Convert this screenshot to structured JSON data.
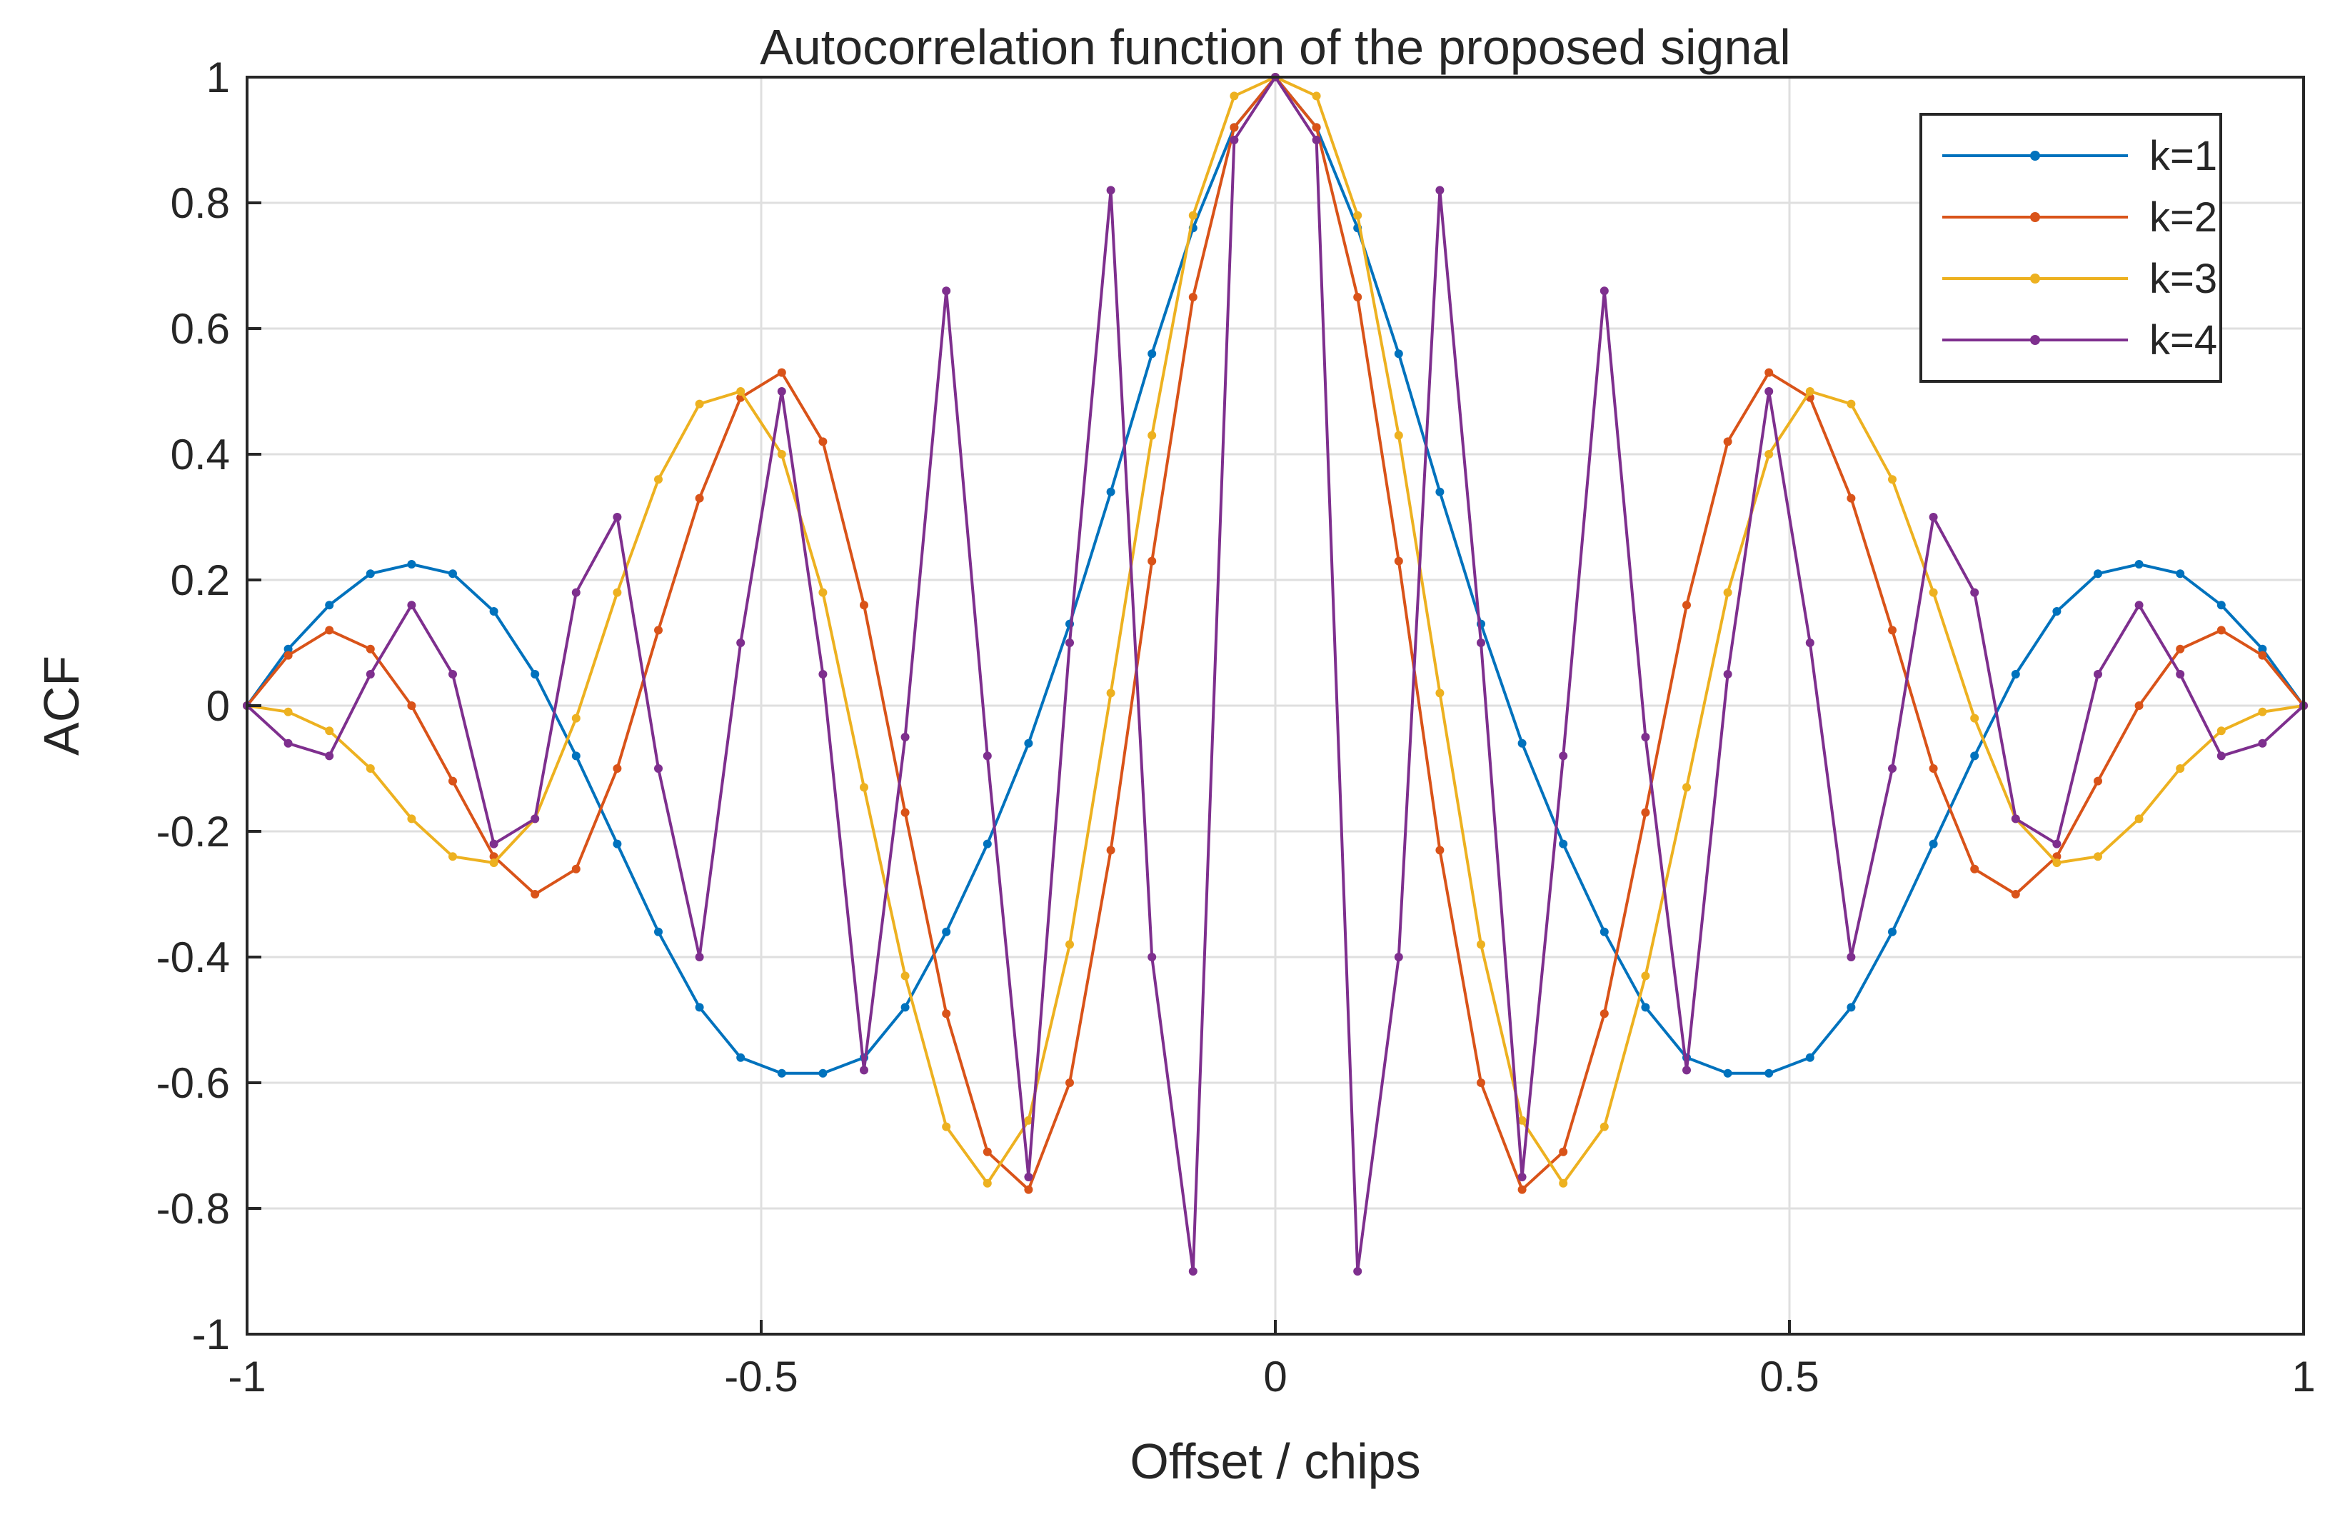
{
  "chart_data": {
    "type": "line",
    "title": "Autocorrelation function of the proposed signal",
    "xlabel": "Offset / chips",
    "ylabel": "ACF",
    "xlim": [
      -1,
      1
    ],
    "ylim": [
      -1,
      1
    ],
    "xticks": [
      -1,
      -0.5,
      0,
      0.5,
      1
    ],
    "xtick_labels": [
      "-1",
      "-0.5",
      "0",
      "0.5",
      "1"
    ],
    "yticks": [
      -1,
      -0.8,
      -0.6,
      -0.4,
      -0.2,
      0,
      0.2,
      0.4,
      0.6,
      0.8,
      1
    ],
    "ytick_labels": [
      "-1",
      "-0.8",
      "-0.6",
      "-0.4",
      "-0.2",
      "0",
      "0.2",
      "0.4",
      "0.6",
      "0.8",
      "1"
    ],
    "grid": true,
    "legend_position": "top-right",
    "markers": "dot",
    "x": [
      -1,
      -0.96,
      -0.92,
      -0.88,
      -0.84,
      -0.8,
      -0.76,
      -0.72,
      -0.68,
      -0.64,
      -0.6,
      -0.56,
      -0.52,
      -0.48,
      -0.44,
      -0.4,
      -0.36,
      -0.32,
      -0.28,
      -0.24,
      -0.2,
      -0.16,
      -0.12,
      -0.08,
      -0.04,
      0,
      0.04,
      0.08,
      0.12,
      0.16,
      0.2,
      0.24,
      0.28,
      0.32,
      0.36,
      0.4,
      0.44,
      0.48,
      0.52,
      0.56,
      0.6,
      0.64,
      0.68,
      0.72,
      0.76,
      0.8,
      0.84,
      0.88,
      0.92,
      0.96,
      1
    ],
    "series": [
      {
        "name": "k=1",
        "color": "#0072BD",
        "values": [
          0,
          0.09,
          0.16,
          0.21,
          0.225,
          0.21,
          0.15,
          0.05,
          -0.08,
          -0.22,
          -0.36,
          -0.48,
          -0.56,
          -0.585,
          -0.585,
          -0.56,
          -0.48,
          -0.36,
          -0.22,
          -0.06,
          0.13,
          0.34,
          0.56,
          0.76,
          0.92,
          1,
          0.92,
          0.76,
          0.56,
          0.34,
          0.13,
          -0.06,
          -0.22,
          -0.36,
          -0.48,
          -0.56,
          -0.585,
          -0.585,
          -0.56,
          -0.48,
          -0.36,
          -0.22,
          -0.08,
          0.05,
          0.15,
          0.21,
          0.225,
          0.21,
          0.16,
          0.09,
          0
        ]
      },
      {
        "name": "k=2",
        "color": "#D95319",
        "values": [
          0,
          0.08,
          0.12,
          0.09,
          0,
          -0.12,
          -0.24,
          -0.3,
          -0.26,
          -0.1,
          0.12,
          0.33,
          0.49,
          0.53,
          0.42,
          0.16,
          -0.17,
          -0.49,
          -0.71,
          -0.77,
          -0.6,
          -0.23,
          0.23,
          0.65,
          0.92,
          1,
          0.92,
          0.65,
          0.23,
          -0.23,
          -0.6,
          -0.77,
          -0.71,
          -0.49,
          -0.17,
          0.16,
          0.42,
          0.53,
          0.49,
          0.33,
          0.12,
          -0.1,
          -0.26,
          -0.3,
          -0.24,
          -0.12,
          0,
          0.09,
          0.12,
          0.08,
          0
        ]
      },
      {
        "name": "k=3",
        "color": "#EDB120",
        "values": [
          0,
          -0.01,
          -0.04,
          -0.1,
          -0.18,
          -0.24,
          -0.25,
          -0.18,
          -0.02,
          0.18,
          0.36,
          0.48,
          0.5,
          0.4,
          0.18,
          -0.13,
          -0.43,
          -0.67,
          -0.76,
          -0.66,
          -0.38,
          0.02,
          0.43,
          0.78,
          0.97,
          1,
          0.97,
          0.78,
          0.43,
          0.02,
          -0.38,
          -0.66,
          -0.76,
          -0.67,
          -0.43,
          -0.13,
          0.18,
          0.4,
          0.5,
          0.48,
          0.36,
          0.18,
          -0.02,
          -0.18,
          -0.25,
          -0.24,
          -0.18,
          -0.1,
          -0.04,
          -0.01,
          0
        ]
      },
      {
        "name": "k=4",
        "color": "#7E2F8E",
        "values": [
          0,
          -0.06,
          -0.08,
          0.05,
          0.16,
          0.05,
          -0.22,
          -0.18,
          0.18,
          0.3,
          -0.1,
          -0.4,
          0.1,
          0.5,
          0.05,
          -0.58,
          -0.05,
          0.66,
          -0.08,
          -0.75,
          0.1,
          0.82,
          -0.4,
          -0.9,
          0.9,
          1,
          0.9,
          -0.9,
          -0.4,
          0.82,
          0.1,
          -0.75,
          -0.08,
          0.66,
          -0.05,
          -0.58,
          0.05,
          0.5,
          0.1,
          -0.4,
          -0.1,
          0.3,
          0.18,
          -0.18,
          -0.22,
          0.05,
          0.16,
          0.05,
          -0.08,
          -0.06,
          0
        ]
      }
    ]
  }
}
